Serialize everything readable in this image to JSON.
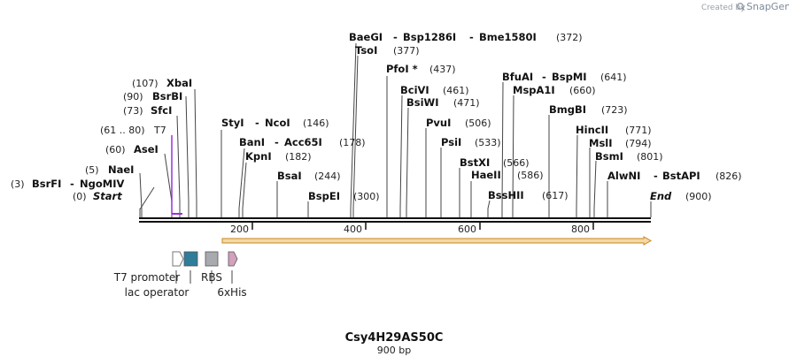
{
  "brand": {
    "prefix": "Created by",
    "name": "SnapGene"
  },
  "title": "Csy4H29AS50C",
  "length_label": "900 bp",
  "ticks": [
    "200",
    "400",
    "600",
    "800"
  ],
  "primer": {
    "name": "T7",
    "range": "(61 .. 80)"
  },
  "sites": [
    {
      "id": "start",
      "label": "Start",
      "pos": "(0)",
      "italic": true
    },
    {
      "id": "bsrfi",
      "label": "BsrFI",
      "second": "NgoMIV",
      "pos": "(3)"
    },
    {
      "id": "naei",
      "label": "NaeI",
      "pos": "(5)"
    },
    {
      "id": "asei",
      "label": "AseI",
      "pos": "(60)"
    },
    {
      "id": "sfci",
      "label": "SfcI",
      "pos": "(73)"
    },
    {
      "id": "bsrbi",
      "label": "BsrBI",
      "pos": "(90)"
    },
    {
      "id": "xbai",
      "label": "XbaI",
      "pos": "(107)"
    },
    {
      "id": "styi",
      "label": "StyI",
      "second": "NcoI",
      "pos": "(146)"
    },
    {
      "id": "bani",
      "label": "BanI",
      "second": "Acc65I",
      "pos": "(178)"
    },
    {
      "id": "kpni",
      "label": "KpnI",
      "pos": "(182)"
    },
    {
      "id": "bsai",
      "label": "BsaI",
      "pos": "(244)"
    },
    {
      "id": "bspei",
      "label": "BspEI",
      "pos": "(300)"
    },
    {
      "id": "baegi",
      "label": "BaeGI",
      "second": "Bsp1286I",
      "third": "Bme1580I",
      "pos": "(372)"
    },
    {
      "id": "tsoi",
      "label": "TsoI",
      "pos": "(377)"
    },
    {
      "id": "pfoi",
      "label": "PfoI *",
      "pos": "(437)"
    },
    {
      "id": "bcivi",
      "label": "BciVI",
      "pos": "(461)"
    },
    {
      "id": "bsiwi",
      "label": "BsiWI",
      "pos": "(471)"
    },
    {
      "id": "pvui",
      "label": "PvuI",
      "pos": "(506)"
    },
    {
      "id": "psii",
      "label": "PsiI",
      "pos": "(533)"
    },
    {
      "id": "bstxi",
      "label": "BstXI",
      "pos": "(566)"
    },
    {
      "id": "haeii",
      "label": "HaeII",
      "pos": "(586)"
    },
    {
      "id": "bsshii",
      "label": "BssHII",
      "pos": "(617)"
    },
    {
      "id": "bfuai",
      "label": "BfuAI",
      "second": "BspMI",
      "pos": "(641)"
    },
    {
      "id": "mspa1i",
      "label": "MspA1I",
      "pos": "(660)"
    },
    {
      "id": "bmgbi",
      "label": "BmgBI",
      "pos": "(723)"
    },
    {
      "id": "hincii",
      "label": "HincII",
      "pos": "(771)"
    },
    {
      "id": "msli",
      "label": "MslI",
      "pos": "(794)"
    },
    {
      "id": "bsmi",
      "label": "BsmI",
      "pos": "(801)"
    },
    {
      "id": "alwni",
      "label": "AlwNI",
      "second": "BstAPI",
      "pos": "(826)"
    },
    {
      "id": "end",
      "label": "End",
      "pos": "(900)",
      "italic": true
    }
  ],
  "features": {
    "t7_promoter": "T7 promoter",
    "lac_operator": "lac operator",
    "rbs": "RBS",
    "his": "6xHis"
  },
  "colors": {
    "primer": "#9b30d9",
    "orf_fill": "#f3d9a6",
    "orf_stroke": "#c9861e",
    "lac": "#2f7d98",
    "rbs": "#a8aab0",
    "his": "#d4a0bc",
    "backbone": "#111111"
  }
}
